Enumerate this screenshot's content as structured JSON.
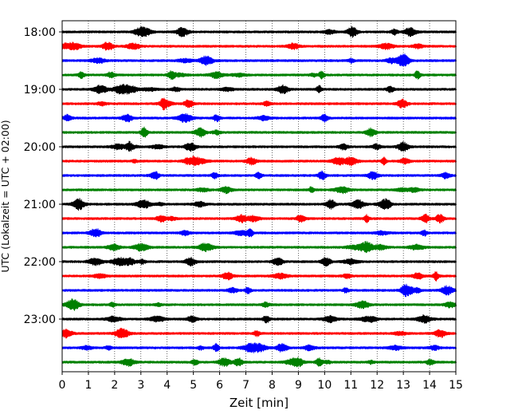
{
  "chart_data": {
    "type": "line",
    "title": "",
    "xlabel": "Zeit  [min]",
    "ylabel": "UTC (Lokalzeit = UTC + 02:00)",
    "xlim": [
      0,
      15
    ],
    "x_ticks": [
      "0",
      "1",
      "2",
      "3",
      "4",
      "5",
      "6",
      "7",
      "8",
      "9",
      "10",
      "11",
      "12",
      "13",
      "14",
      "15"
    ],
    "y_tick_labels": [
      "18:00",
      "19:00",
      "20:00",
      "21:00",
      "22:00",
      "23:00"
    ],
    "grid": "vertical dotted lines at each minute",
    "trace_colors": [
      "#000000",
      "#ff0000",
      "#0000ff",
      "#008000"
    ],
    "traces": [
      {
        "start_time": "18:00",
        "color": "#000000"
      },
      {
        "start_time": "18:15",
        "color": "#ff0000"
      },
      {
        "start_time": "18:30",
        "color": "#0000ff"
      },
      {
        "start_time": "18:45",
        "color": "#008000"
      },
      {
        "start_time": "19:00",
        "color": "#000000"
      },
      {
        "start_time": "19:15",
        "color": "#ff0000"
      },
      {
        "start_time": "19:30",
        "color": "#0000ff"
      },
      {
        "start_time": "19:45",
        "color": "#008000"
      },
      {
        "start_time": "20:00",
        "color": "#000000"
      },
      {
        "start_time": "20:15",
        "color": "#ff0000"
      },
      {
        "start_time": "20:30",
        "color": "#0000ff"
      },
      {
        "start_time": "20:45",
        "color": "#008000"
      },
      {
        "start_time": "21:00",
        "color": "#000000"
      },
      {
        "start_time": "21:15",
        "color": "#ff0000"
      },
      {
        "start_time": "21:30",
        "color": "#0000ff"
      },
      {
        "start_time": "21:45",
        "color": "#008000"
      },
      {
        "start_time": "22:00",
        "color": "#000000"
      },
      {
        "start_time": "22:15",
        "color": "#ff0000"
      },
      {
        "start_time": "22:30",
        "color": "#0000ff"
      },
      {
        "start_time": "22:45",
        "color": "#008000"
      },
      {
        "start_time": "23:00",
        "color": "#000000"
      },
      {
        "start_time": "23:15",
        "color": "#ff0000"
      },
      {
        "start_time": "23:30",
        "color": "#0000ff"
      },
      {
        "start_time": "23:45",
        "color": "#008000"
      }
    ]
  }
}
